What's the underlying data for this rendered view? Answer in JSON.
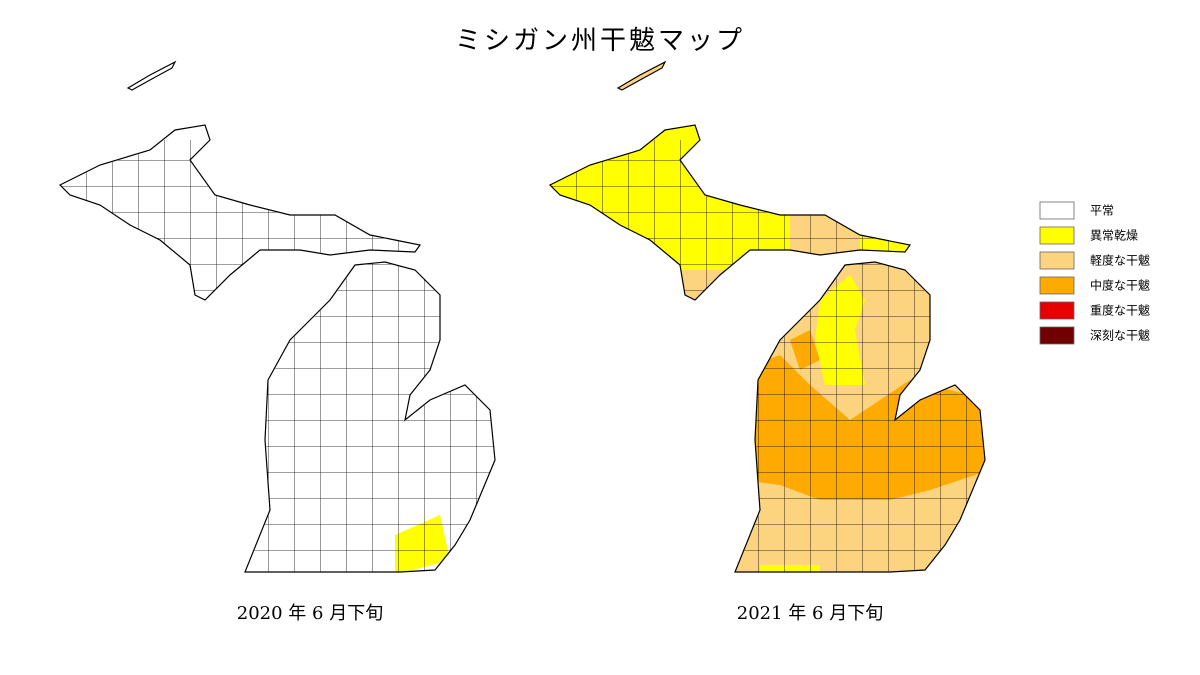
{
  "title": "ミシガン州干魃マップ",
  "maps": [
    {
      "caption": "2020 年 6 月下旬"
    },
    {
      "caption": "2021 年 6 月下旬"
    }
  ],
  "legend": [
    {
      "label": "平常",
      "color": "#ffffff"
    },
    {
      "label": "異常乾燥",
      "color": "#ffff00"
    },
    {
      "label": "軽度な干魃",
      "color": "#fcd37f"
    },
    {
      "label": "中度な干魃",
      "color": "#ffaa00"
    },
    {
      "label": "重度な干魃",
      "color": "#e60000"
    },
    {
      "label": "深刻な干魃",
      "color": "#730000"
    }
  ]
}
